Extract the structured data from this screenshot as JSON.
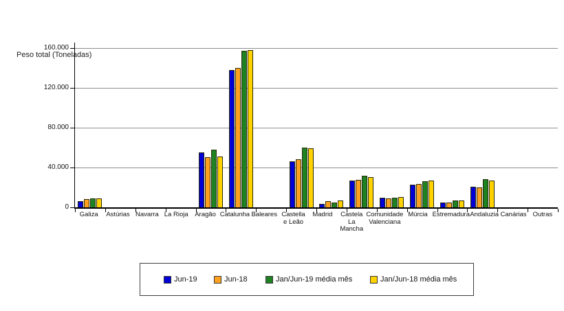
{
  "colors": {
    "series_blue": "#0000D6",
    "series_orange": "#FFA11E",
    "series_green": "#1E8222",
    "series_yellow": "#FFD200",
    "gridline": "#8c8c8c",
    "axis": "#000000",
    "bar_border": "#2a2a08",
    "legend_border": "#3c3c3c"
  },
  "chart_data": {
    "type": "bar",
    "title": "",
    "xlabel": "",
    "ylabel": "Peso total (Toneladas)",
    "ylim": [
      0,
      160000
    ],
    "grid": true,
    "legend_position": "bottom",
    "ytick_values": [
      0,
      40000,
      80000,
      120000,
      160000
    ],
    "ytick_labels": [
      "0",
      "40.000",
      "80.000",
      "120.000",
      "160.000"
    ],
    "categories": [
      "Galiza",
      "Astúrias",
      "Navarra",
      "La Rioja",
      "Aragão",
      "Catalunha",
      "Baleares",
      "Castella\ne Leão",
      "Madrid",
      "Castela\nLa\nMancha",
      "Comunidade\nValenciana",
      "Múrcia",
      "Estremadura",
      "Andaluzia",
      "Canárias",
      "Outras"
    ],
    "series": [
      {
        "name": "Jun-19",
        "color": "#0000D6",
        "values": [
          6500,
          0,
          0,
          0,
          55000,
          138000,
          0,
          46000,
          3500,
          27000,
          9500,
          23000,
          4500,
          21000,
          0,
          0
        ]
      },
      {
        "name": "Jun-18",
        "color": "#FFA11E",
        "values": [
          8500,
          0,
          0,
          0,
          50000,
          140000,
          0,
          48000,
          6000,
          27500,
          9000,
          23500,
          4500,
          20000,
          0,
          0
        ]
      },
      {
        "name": "Jan/Jun-19 média mês",
        "color": "#1E8222",
        "values": [
          9000,
          0,
          0,
          0,
          58000,
          157000,
          0,
          60000,
          5000,
          31500,
          9500,
          26000,
          7000,
          28000,
          0,
          0
        ]
      },
      {
        "name": "Jan/Jun-18 média mês",
        "color": "#FFD200",
        "values": [
          9000,
          0,
          0,
          0,
          51000,
          158000,
          0,
          59000,
          7000,
          30000,
          10500,
          27000,
          7000,
          27000,
          0,
          0
        ]
      }
    ]
  }
}
